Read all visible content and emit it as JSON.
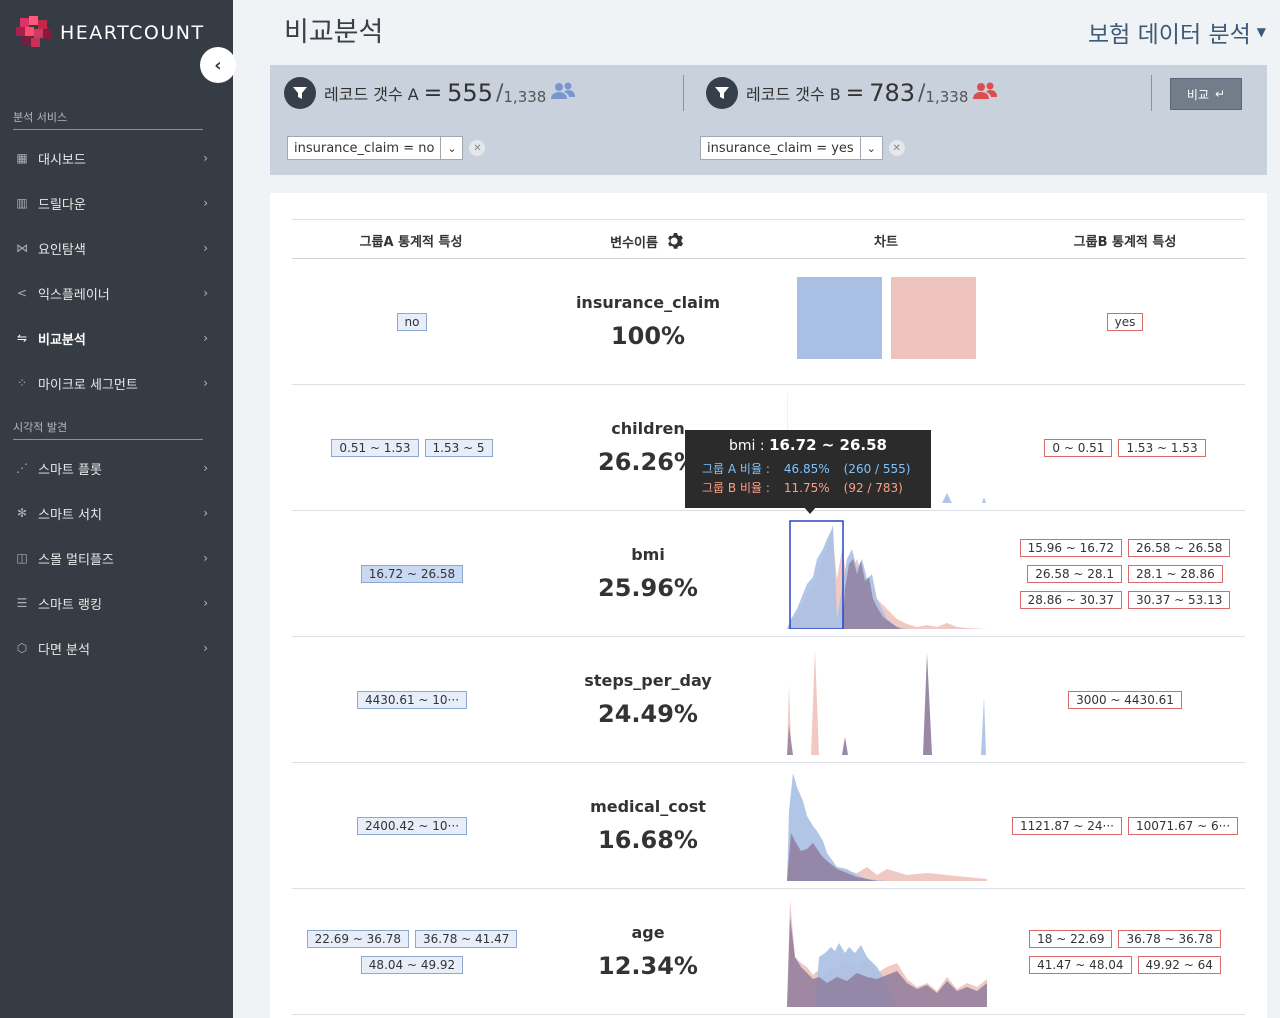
{
  "brand": {
    "name": "HEARTCOUNT"
  },
  "sidebar": {
    "section_analysis": "분석 서비스",
    "section_visual": "시각적 발견",
    "items_analysis": [
      {
        "label": "대시보드",
        "icon": "dashboard-icon",
        "active": false
      },
      {
        "label": "드릴다운",
        "icon": "drilldown-icon",
        "active": false
      },
      {
        "label": "요인탐색",
        "icon": "factor-icon",
        "active": false
      },
      {
        "label": "익스플레이너",
        "icon": "share-icon",
        "active": false
      },
      {
        "label": "비교분석",
        "icon": "compare-icon",
        "active": true
      },
      {
        "label": "마이크로 세그먼트",
        "icon": "segment-icon",
        "active": false
      }
    ],
    "items_visual": [
      {
        "label": "스마트 플롯",
        "icon": "plot-icon"
      },
      {
        "label": "스마트 서치",
        "icon": "search-icon"
      },
      {
        "label": "스몰 멀티플즈",
        "icon": "multiples-icon"
      },
      {
        "label": "스마트 랭킹",
        "icon": "ranking-icon"
      },
      {
        "label": "다면 분석",
        "icon": "multi-icon"
      }
    ]
  },
  "header": {
    "title": "비교분석",
    "dataset": "보험 데이터 분석"
  },
  "filters": {
    "a": {
      "label": "레코드 갯수 A",
      "count": "555",
      "total": "1,338",
      "chip": "insurance_claim = no",
      "color": "#7b96cf"
    },
    "b": {
      "label": "레코드 갯수 B",
      "count": "783",
      "total": "1,338",
      "chip": "insurance_claim = yes",
      "color": "#d94f4f"
    },
    "compare_label": "비교"
  },
  "table": {
    "headers": {
      "group_a": "그룹A 통계적 특성",
      "variable": "변수이름",
      "chart": "차트",
      "group_b": "그룹B 통계적 특성"
    },
    "rows": [
      {
        "name": "insurance_claim",
        "pct": "100%",
        "a_tags": [
          "no"
        ],
        "b_tags": [
          "yes"
        ]
      },
      {
        "name": "children",
        "pct": "26.26%",
        "a_tags": [
          "0.51 ~ 1.53",
          "1.53 ~ 5"
        ],
        "b_tags": [
          "0 ~ 0.51",
          "1.53 ~ 1.53"
        ]
      },
      {
        "name": "bmi",
        "pct": "25.96%",
        "a_tags": [
          "16.72 ~ 26.58"
        ],
        "b_tags": [
          "15.96 ~ 16.72",
          "26.58 ~ 26.58",
          "26.58 ~ 28.1",
          "28.1 ~ 28.86",
          "28.86 ~ 30.37",
          "30.37 ~ 53.13"
        ]
      },
      {
        "name": "steps_per_day",
        "pct": "24.49%",
        "a_tags": [
          "4430.61 ~ 10···"
        ],
        "b_tags": [
          "3000 ~ 4430.61"
        ]
      },
      {
        "name": "medical_cost",
        "pct": "16.68%",
        "a_tags": [
          "2400.42 ~ 10···"
        ],
        "b_tags": [
          "1121.87 ~ 24···",
          "10071.67 ~ 6···"
        ]
      },
      {
        "name": "age",
        "pct": "12.34%",
        "a_tags": [
          "22.69 ~ 36.78",
          "36.78 ~ 41.47",
          "48.04 ~ 49.92"
        ],
        "b_tags": [
          "18 ~ 22.69",
          "36.78 ~ 36.78",
          "41.47 ~ 48.04",
          "49.92 ~ 64"
        ]
      }
    ]
  },
  "tooltip": {
    "var": "bmi :",
    "range": "16.72 ~ 26.58",
    "a_label": "그룹 A 비율 :",
    "a_pct": "46.85%",
    "a_frac": "(260 / 555)",
    "b_label": "그룹 B 비율 :",
    "b_pct": "11.75%",
    "b_frac": "(92 / 783)"
  },
  "colors": {
    "series_a": "#a9c0e4",
    "series_b": "#efc3bd",
    "overlap": "#8a7a9c",
    "accent": "#3d5a78",
    "sidebar_bg": "#363c43"
  }
}
